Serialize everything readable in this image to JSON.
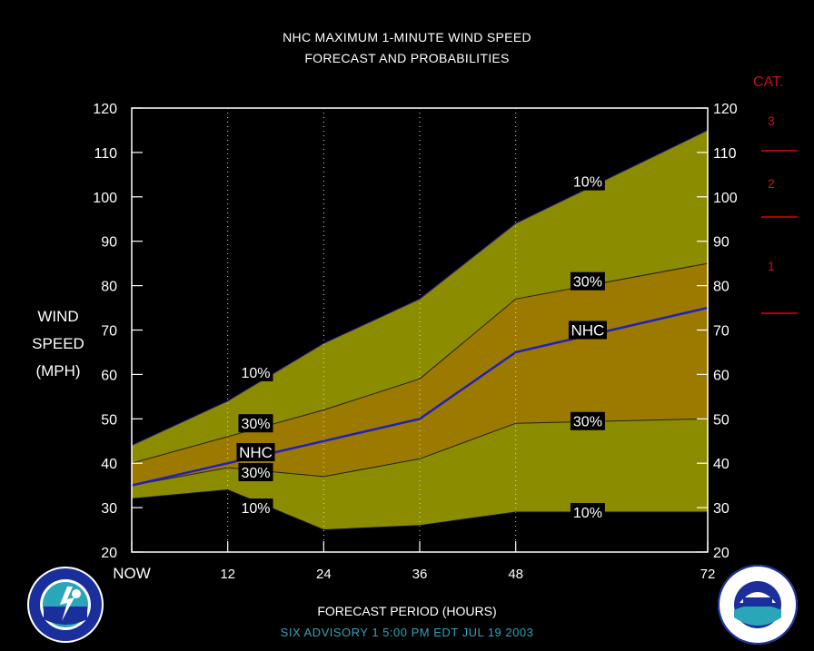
{
  "title_line1": "NHC MAXIMUM 1-MINUTE WIND SPEED",
  "title_line2": "FORECAST AND PROBABILITIES",
  "cat_title": "CAT.",
  "cat_numbers": [
    "3",
    "2",
    "1"
  ],
  "ylabel_lines": [
    "WIND",
    "SPEED",
    "(MPH)"
  ],
  "xlabel": "FORECAST PERIOD (HOURS)",
  "advisory": "SIX   ADVISORY  1 5:00  PM  EDT  JUL  19  2003",
  "colors": {
    "background": "#000000",
    "outer_band": "#8c8c00",
    "inner_band": "#9c7a00",
    "nhc_line": "#2020c0",
    "category": "#cc1111",
    "advisory_text": "#2fa3b8"
  },
  "chart_data": {
    "type": "area",
    "x": [
      0,
      12,
      24,
      36,
      48,
      72
    ],
    "x_tick_labels": [
      "NOW",
      "12",
      "24",
      "36",
      "48",
      "72"
    ],
    "xlim": [
      0,
      72
    ],
    "ylim": [
      20,
      120
    ],
    "y_ticks": [
      20,
      30,
      40,
      50,
      60,
      70,
      80,
      90,
      100,
      110,
      120
    ],
    "grid": "dotted vertical lines at 12, 24, 36, 48",
    "series": [
      {
        "name": "10%",
        "values": [
          44,
          54,
          67,
          77,
          94,
          115
        ]
      },
      {
        "name": "30%",
        "values": [
          40,
          46,
          52,
          59,
          77,
          85
        ]
      },
      {
        "name": "NHC",
        "values": [
          35,
          40,
          45,
          50,
          65,
          75
        ]
      },
      {
        "name": "30%",
        "values": [
          35,
          39,
          37,
          41,
          49,
          50
        ]
      },
      {
        "name": "10%",
        "values": [
          32,
          34,
          25,
          26,
          29,
          29
        ]
      }
    ],
    "band_labels": [
      {
        "text": "10%",
        "x": 15.5,
        "y": 60.5
      },
      {
        "text": "30%",
        "x": 15.5,
        "y": 49
      },
      {
        "text": "NHC",
        "x": 15.5,
        "y": 42.5
      },
      {
        "text": "30%",
        "x": 15.5,
        "y": 38
      },
      {
        "text": "10%",
        "x": 15.5,
        "y": 30
      },
      {
        "text": "10%",
        "x": 57,
        "y": 103.5
      },
      {
        "text": "30%",
        "x": 57,
        "y": 81
      },
      {
        "text": "NHC",
        "x": 57,
        "y": 70
      },
      {
        "text": "30%",
        "x": 57,
        "y": 49.5
      },
      {
        "text": "10%",
        "x": 57,
        "y": 29
      }
    ],
    "categories_right": [
      {
        "label": "3",
        "threshold": 111
      },
      {
        "label": "2",
        "threshold": 96
      },
      {
        "label": "1",
        "threshold": 74
      }
    ]
  }
}
